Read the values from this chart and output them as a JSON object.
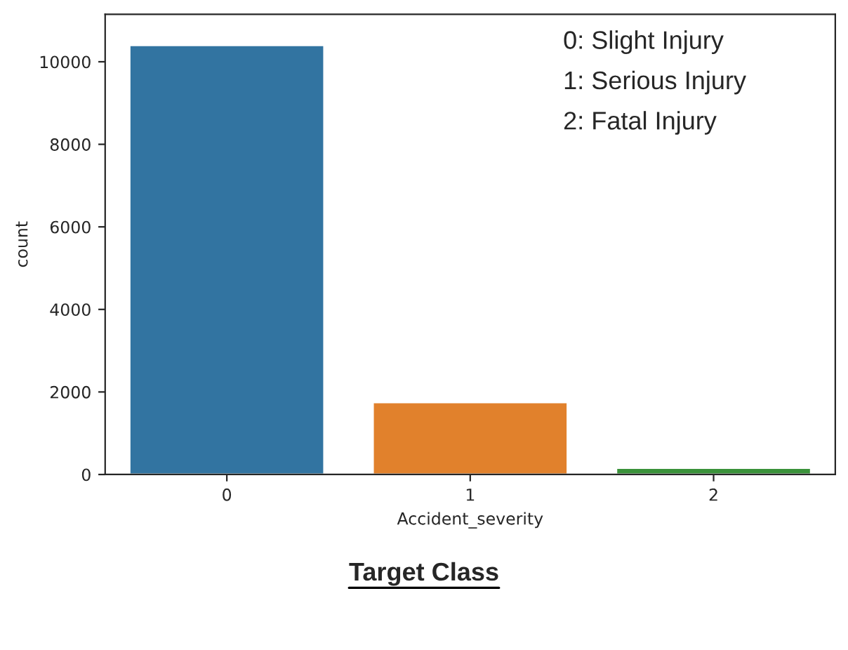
{
  "chart_data": {
    "type": "bar",
    "title": "Target Class",
    "xlabel": "Accident_severity",
    "ylabel": "count",
    "categories": [
      "0",
      "1",
      "2"
    ],
    "values": [
      10400,
      1750,
      160
    ],
    "colors": [
      "#3274a1",
      "#e1812c",
      "#3a923a"
    ],
    "ylim": [
      0,
      11150
    ],
    "yticks": [
      0,
      2000,
      4000,
      6000,
      8000,
      10000
    ],
    "grid": false,
    "annotations": [
      "0: Slight Injury",
      "1: Serious Injury",
      "2: Fatal Injury"
    ]
  }
}
